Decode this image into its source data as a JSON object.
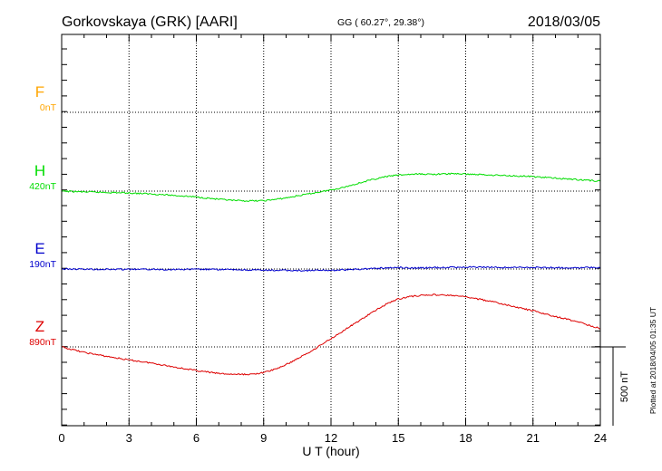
{
  "header": {
    "station": "Gorkovskaya (GRK)  [AARI]",
    "coords": "GG ( 60.27°,  29.38°)",
    "date": "2018/03/05"
  },
  "footer": {
    "plotted": "Plotted at 2018/04/05 01:35 UT"
  },
  "scale": {
    "label": "500 nT",
    "value_nT": 500
  },
  "chart_data": {
    "type": "line",
    "xlabel": "U T (hour)",
    "xlim": [
      0,
      24
    ],
    "xticks": [
      "0",
      "3",
      "6",
      "9",
      "12",
      "15",
      "18",
      "21",
      "24"
    ],
    "grid": true,
    "series": [
      {
        "name": "F",
        "baseline": "0nT",
        "color": "#ffa500",
        "x": [],
        "y": []
      },
      {
        "name": "H",
        "baseline": "420nT",
        "color": "#00dd00",
        "x": [
          0,
          1,
          2,
          3,
          4,
          5,
          6,
          7,
          7.5,
          8,
          8.5,
          9,
          9.5,
          10,
          10.5,
          11,
          11.5,
          12,
          12.5,
          13,
          13.5,
          14,
          14.5,
          15,
          15.5,
          16,
          16.5,
          17,
          17.5,
          18,
          19,
          20,
          21,
          22,
          23,
          24
        ],
        "y": [
          420,
          415,
          412,
          408,
          402,
          393,
          383,
          368,
          362,
          358,
          358,
          359,
          367,
          377,
          390,
          402,
          415,
          428,
          442,
          461,
          481,
          498,
          513,
          522,
          526,
          528,
          527,
          528,
          531,
          528,
          523,
          518,
          512,
          502,
          493,
          483
        ]
      },
      {
        "name": "E",
        "baseline": "190nT",
        "color": "#0000cc",
        "x": [
          0,
          1,
          2,
          3,
          4,
          5,
          6,
          7,
          8,
          9,
          10,
          11,
          12,
          13,
          14,
          15,
          15.5,
          16,
          17,
          18,
          19,
          20,
          21,
          22,
          23,
          24
        ],
        "y": [
          190,
          189,
          188,
          188,
          188,
          187,
          188,
          187,
          185,
          182,
          181,
          180,
          182,
          187,
          194,
          200,
          198,
          197,
          200,
          202,
          201,
          200,
          200,
          199,
          198,
          200
        ]
      },
      {
        "name": "Z",
        "baseline": "890nT",
        "color": "#dd0000",
        "x": [
          0,
          1,
          2,
          3,
          4,
          5,
          6,
          7,
          7.5,
          8,
          8.5,
          9,
          9.5,
          10,
          11,
          12,
          13,
          14,
          14.5,
          15,
          15.5,
          16,
          16.5,
          17,
          17.5,
          18,
          19,
          20,
          21,
          22,
          23,
          24
        ],
        "y": [
          890,
          855,
          830,
          807,
          788,
          763,
          740,
          721,
          717,
          715,
          717,
          727,
          748,
          777,
          853,
          943,
          1033,
          1123,
          1165,
          1194,
          1209,
          1217,
          1221,
          1219,
          1215,
          1207,
          1183,
          1150,
          1119,
          1082,
          1050,
          1005
        ]
      }
    ]
  }
}
